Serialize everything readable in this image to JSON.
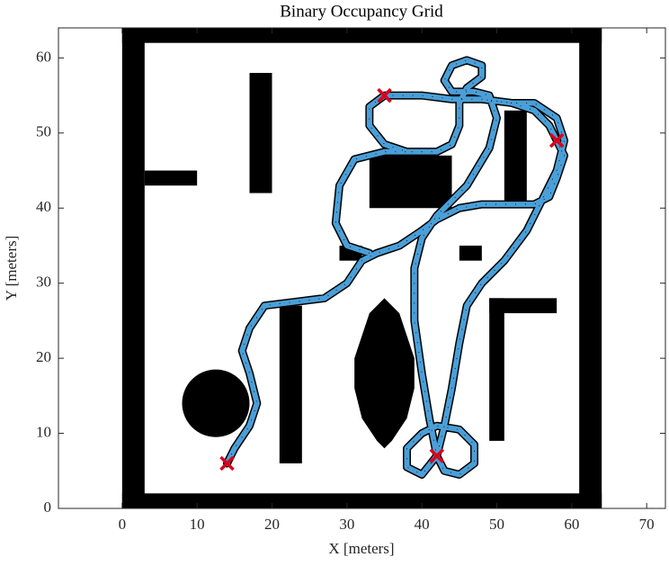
{
  "chart_data": {
    "type": "occupancy",
    "title": "Binary Occupancy Grid",
    "xlabel": "X [meters]",
    "ylabel": "Y [meters]",
    "xlim": [
      -8.5,
      72.5
    ],
    "ylim": [
      0,
      64
    ],
    "xticks": [
      0,
      10,
      20,
      30,
      40,
      50,
      60,
      70
    ],
    "yticks": [
      0,
      10,
      20,
      30,
      40,
      50,
      60
    ],
    "obstacle_color": "#000000",
    "rects": [
      [
        0,
        0,
        64,
        2
      ],
      [
        0,
        62,
        64,
        2
      ],
      [
        0,
        0,
        3,
        64
      ],
      [
        61,
        0,
        3,
        64
      ],
      [
        3,
        43,
        7,
        2
      ],
      [
        17,
        42,
        3,
        16
      ],
      [
        33,
        40,
        11,
        7
      ],
      [
        51,
        40,
        3,
        13
      ],
      [
        29,
        33,
        3,
        2
      ],
      [
        45,
        33,
        3,
        2
      ],
      [
        21,
        6,
        3,
        21
      ],
      [
        49,
        9,
        2,
        19
      ],
      [
        49,
        26,
        9,
        2
      ]
    ],
    "circles": [
      [
        12.5,
        14,
        4.5
      ]
    ],
    "polygons": [
      [
        [
          35,
          28
        ],
        [
          37,
          26
        ],
        [
          38,
          23
        ],
        [
          39,
          20
        ],
        [
          39,
          16
        ],
        [
          38,
          12
        ],
        [
          36,
          9
        ],
        [
          35,
          8
        ],
        [
          34,
          9
        ],
        [
          32,
          12
        ],
        [
          31,
          16
        ],
        [
          31,
          20
        ],
        [
          32,
          23
        ],
        [
          33,
          26
        ]
      ]
    ],
    "path": {
      "color": "#4a9fd8",
      "x": [
        14,
        15,
        17,
        18,
        17,
        16,
        17,
        19,
        23,
        27,
        30,
        32,
        34,
        37,
        40,
        42,
        45,
        48,
        52,
        55,
        57,
        58,
        59,
        58,
        57,
        55,
        52,
        48,
        44,
        40,
        35,
        33,
        33,
        35,
        38,
        42,
        44,
        45,
        45,
        46,
        48,
        48,
        46,
        44,
        43,
        44,
        47,
        49,
        50,
        49,
        46,
        42,
        40,
        39,
        39,
        40,
        41,
        42,
        43,
        45,
        47,
        47,
        45,
        42,
        40,
        38,
        38,
        40,
        42,
        43,
        44,
        45,
        46,
        48,
        51,
        54,
        56,
        58,
        59,
        58,
        55,
        52,
        48,
        null,
        33,
        30,
        28.5,
        29,
        31,
        35,
        38
      ],
      "y": [
        6,
        8,
        11,
        14,
        18,
        21,
        24,
        27,
        27.5,
        28,
        30,
        33,
        34,
        35,
        37,
        38.5,
        40,
        40.5,
        40.5,
        40.5,
        41.5,
        44,
        47,
        49,
        51,
        53,
        54,
        54.5,
        54.5,
        55,
        55,
        53.5,
        51,
        48.5,
        47.5,
        47.5,
        48.5,
        51,
        54,
        56,
        57.5,
        59,
        59.7,
        59,
        57,
        55.5,
        55.5,
        55,
        52,
        48,
        43,
        39,
        36,
        32,
        25,
        18,
        12,
        7,
        5,
        4.5,
        6,
        8.5,
        10.5,
        11,
        10,
        8,
        5.5,
        4.5,
        7,
        11,
        16,
        22,
        27,
        30,
        33,
        37,
        41,
        45,
        49,
        52,
        54,
        54,
        54.5,
        null,
        34,
        35,
        38,
        43,
        46.5,
        47.5,
        47.5
      ]
    },
    "waypoints": {
      "color": "#d9001b",
      "x": [
        14,
        42,
        58,
        35
      ],
      "y": [
        6,
        7,
        49,
        55
      ]
    }
  }
}
